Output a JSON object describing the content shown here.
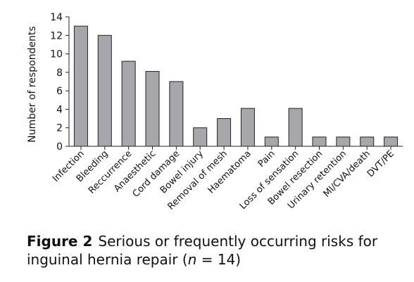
{
  "chart_data": {
    "type": "bar",
    "ylabel": "Number of respondents",
    "xlabel": "",
    "ylim": [
      0,
      14
    ],
    "yticks": [
      0,
      2,
      4,
      6,
      8,
      10,
      12,
      14
    ],
    "categories": [
      "Infection",
      "Bleeding",
      "Reccurrence",
      "Anaesthetic",
      "Cord damage",
      "Bowel injury",
      "Removal of mesh",
      "Haematoma",
      "Pain",
      "Loss of sensation",
      "Bowel resection",
      "Urinary retention",
      "MI/CVA/death",
      "DVT/PE"
    ],
    "values": [
      13,
      12,
      9.2,
      8.1,
      7,
      2,
      3,
      4.1,
      1,
      4.1,
      1,
      1,
      1,
      1
    ],
    "bar_color": "#a6a6ab"
  },
  "caption": {
    "figure_label": "Figure 2",
    "text_before_n": "Serious or frequently occurring risks for inguinal hernia repair (",
    "n_var": "n",
    "text_after_n": " = 14)"
  }
}
